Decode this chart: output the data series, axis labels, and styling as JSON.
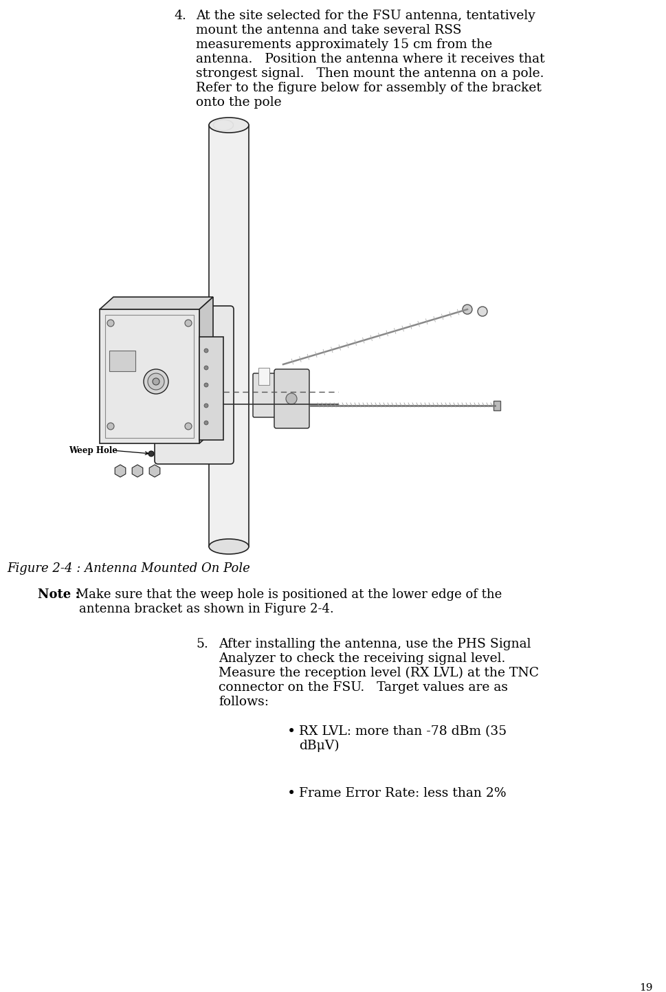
{
  "page_number": "19",
  "bg_color": "#ffffff",
  "text_color": "#000000",
  "para4_number": "4.",
  "para4_text": [
    "At the site selected for the FSU antenna, tentatively",
    "mount the antenna and take several RSS",
    "measurements approximately 15 cm from the",
    "antenna.   Position the antenna where it receives that",
    "strongest signal.   Then mount the antenna on a pole.",
    "Refer to the figure below for assembly of the bracket",
    "onto the pole"
  ],
  "figure_caption": "Figure 2-4 : Antenna Mounted On Pole",
  "note_bold": "Note :",
  "note_text": " Make sure that the weep hole is positioned at the lower edge of the",
  "note_text2": "antenna bracket as shown in Figure 2-4.",
  "para5_number": "5.",
  "para5_text": [
    "After installing the antenna, use the PHS Signal",
    "Analyzer to check the receiving signal level.",
    "Measure the reception level (RX LVL) at the TNC",
    "connector on the FSU.   Target values are as",
    "follows:"
  ],
  "bullet1_line1": "RX LVL: more than -78 dBm (35",
  "bullet1_line2": "dBμV)",
  "bullet2": "Frame Error Rate: less than 2%",
  "font_size_body": 13.5,
  "font_size_caption": 13,
  "font_size_note": 13,
  "font_size_page": 11,
  "weep_hole_label": "Weep Hole"
}
